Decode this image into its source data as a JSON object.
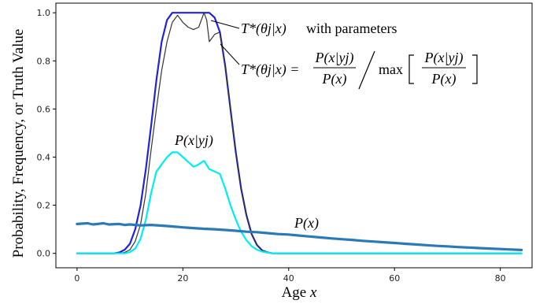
{
  "chart_data": {
    "type": "line",
    "xlabel": "Age",
    "xlabel_var": "x",
    "ylabel": "Probability, Frequency, or Truth Value",
    "xlim": [
      -4,
      86
    ],
    "ylim": [
      -0.06,
      1.04
    ],
    "xticks": [
      0,
      20,
      40,
      60,
      80
    ],
    "yticks": [
      0.0,
      0.2,
      0.4,
      0.6,
      0.8,
      1.0
    ],
    "ytick_labels": [
      "0.0",
      "0.2",
      "0.4",
      "0.6",
      "0.8",
      "1.0"
    ],
    "grid": false,
    "series": [
      {
        "key": "t_param",
        "color": "#2222dd",
        "width": 2.2,
        "points": [
          [
            0,
            0
          ],
          [
            7,
            0
          ],
          [
            8,
            0.004
          ],
          [
            9,
            0.015
          ],
          [
            10,
            0.04
          ],
          [
            11,
            0.1
          ],
          [
            12,
            0.2
          ],
          [
            13,
            0.35
          ],
          [
            14,
            0.53
          ],
          [
            15,
            0.72
          ],
          [
            16,
            0.88
          ],
          [
            17,
            0.97
          ],
          [
            18,
            1.0
          ],
          [
            19,
            1.0
          ],
          [
            20,
            1.0
          ],
          [
            21,
            1.0
          ],
          [
            22,
            1.0
          ],
          [
            23,
            1.0
          ],
          [
            24,
            1.0
          ],
          [
            25,
            1.0
          ],
          [
            26,
            0.98
          ],
          [
            27,
            0.92
          ],
          [
            28,
            0.78
          ],
          [
            29,
            0.6
          ],
          [
            30,
            0.42
          ],
          [
            31,
            0.27
          ],
          [
            32,
            0.16
          ],
          [
            33,
            0.08
          ],
          [
            34,
            0.035
          ],
          [
            35,
            0.012
          ],
          [
            36,
            0.004
          ],
          [
            37,
            0
          ],
          [
            84,
            0
          ]
        ]
      },
      {
        "key": "t_ratio",
        "color": "#333333",
        "width": 1.2,
        "points": [
          [
            0,
            0
          ],
          [
            8,
            0
          ],
          [
            9,
            0.004
          ],
          [
            10,
            0.015
          ],
          [
            11,
            0.05
          ],
          [
            12,
            0.12
          ],
          [
            13,
            0.25
          ],
          [
            14,
            0.43
          ],
          [
            15,
            0.6
          ],
          [
            16,
            0.76
          ],
          [
            17,
            0.88
          ],
          [
            18,
            0.96
          ],
          [
            19,
            0.99
          ],
          [
            20,
            0.96
          ],
          [
            21,
            0.94
          ],
          [
            22,
            0.93
          ],
          [
            23,
            0.94
          ],
          [
            24,
            1.0
          ],
          [
            24.5,
            0.97
          ],
          [
            25,
            0.88
          ],
          [
            26,
            0.91
          ],
          [
            27,
            0.92
          ],
          [
            28,
            0.78
          ],
          [
            29,
            0.6
          ],
          [
            30,
            0.42
          ],
          [
            31,
            0.27
          ],
          [
            32,
            0.16
          ],
          [
            33,
            0.08
          ],
          [
            34,
            0.035
          ],
          [
            35,
            0.012
          ],
          [
            36,
            0.004
          ],
          [
            37,
            0
          ],
          [
            84,
            0
          ]
        ]
      },
      {
        "key": "p_given_y",
        "color": "#00eeee",
        "width": 2.2,
        "points": [
          [
            0,
            0
          ],
          [
            9,
            0
          ],
          [
            10,
            0.005
          ],
          [
            11,
            0.02
          ],
          [
            12,
            0.06
          ],
          [
            13,
            0.14
          ],
          [
            14,
            0.25
          ],
          [
            15,
            0.34
          ],
          [
            16,
            0.37
          ],
          [
            17,
            0.4
          ],
          [
            18,
            0.42
          ],
          [
            19,
            0.42
          ],
          [
            20,
            0.4
          ],
          [
            21,
            0.38
          ],
          [
            22,
            0.36
          ],
          [
            23,
            0.37
          ],
          [
            24,
            0.385
          ],
          [
            25,
            0.35
          ],
          [
            26,
            0.34
          ],
          [
            27,
            0.33
          ],
          [
            28,
            0.27
          ],
          [
            29,
            0.2
          ],
          [
            30,
            0.14
          ],
          [
            31,
            0.09
          ],
          [
            32,
            0.055
          ],
          [
            33,
            0.03
          ],
          [
            34,
            0.015
          ],
          [
            35,
            0.007
          ],
          [
            36,
            0.003
          ],
          [
            37,
            0
          ],
          [
            84,
            0
          ]
        ]
      },
      {
        "key": "p_x",
        "color": "#2a7ab8",
        "width": 3.2,
        "points": [
          [
            0,
            0.122
          ],
          [
            2,
            0.125
          ],
          [
            3,
            0.12
          ],
          [
            5,
            0.125
          ],
          [
            6,
            0.12
          ],
          [
            8,
            0.122
          ],
          [
            9,
            0.118
          ],
          [
            10,
            0.12
          ],
          [
            12,
            0.116
          ],
          [
            14,
            0.118
          ],
          [
            16,
            0.115
          ],
          [
            18,
            0.112
          ],
          [
            20,
            0.108
          ],
          [
            22,
            0.105
          ],
          [
            24,
            0.102
          ],
          [
            26,
            0.1
          ],
          [
            28,
            0.097
          ],
          [
            30,
            0.094
          ],
          [
            32,
            0.09
          ],
          [
            34,
            0.088
          ],
          [
            36,
            0.084
          ],
          [
            38,
            0.08
          ],
          [
            40,
            0.078
          ],
          [
            42,
            0.074
          ],
          [
            44,
            0.07
          ],
          [
            46,
            0.066
          ],
          [
            48,
            0.062
          ],
          [
            50,
            0.059
          ],
          [
            52,
            0.056
          ],
          [
            54,
            0.052
          ],
          [
            56,
            0.049
          ],
          [
            58,
            0.046
          ],
          [
            60,
            0.043
          ],
          [
            62,
            0.04
          ],
          [
            64,
            0.037
          ],
          [
            66,
            0.034
          ],
          [
            68,
            0.031
          ],
          [
            70,
            0.029
          ],
          [
            72,
            0.026
          ],
          [
            74,
            0.024
          ],
          [
            76,
            0.022
          ],
          [
            78,
            0.02
          ],
          [
            80,
            0.018
          ],
          [
            82,
            0.016
          ],
          [
            84,
            0.014
          ]
        ]
      }
    ]
  },
  "annotations": {
    "t_param_label": "T*(θj|x)",
    "with_parameters": "with parameters",
    "t_ratio_lhs": "T*(θj|x) =",
    "frac_num": "P(x|yj)",
    "frac_den": "P(x)",
    "max_word": "max",
    "p_given_y_label": "P(x|yj)",
    "p_x_label": "P(x)"
  }
}
